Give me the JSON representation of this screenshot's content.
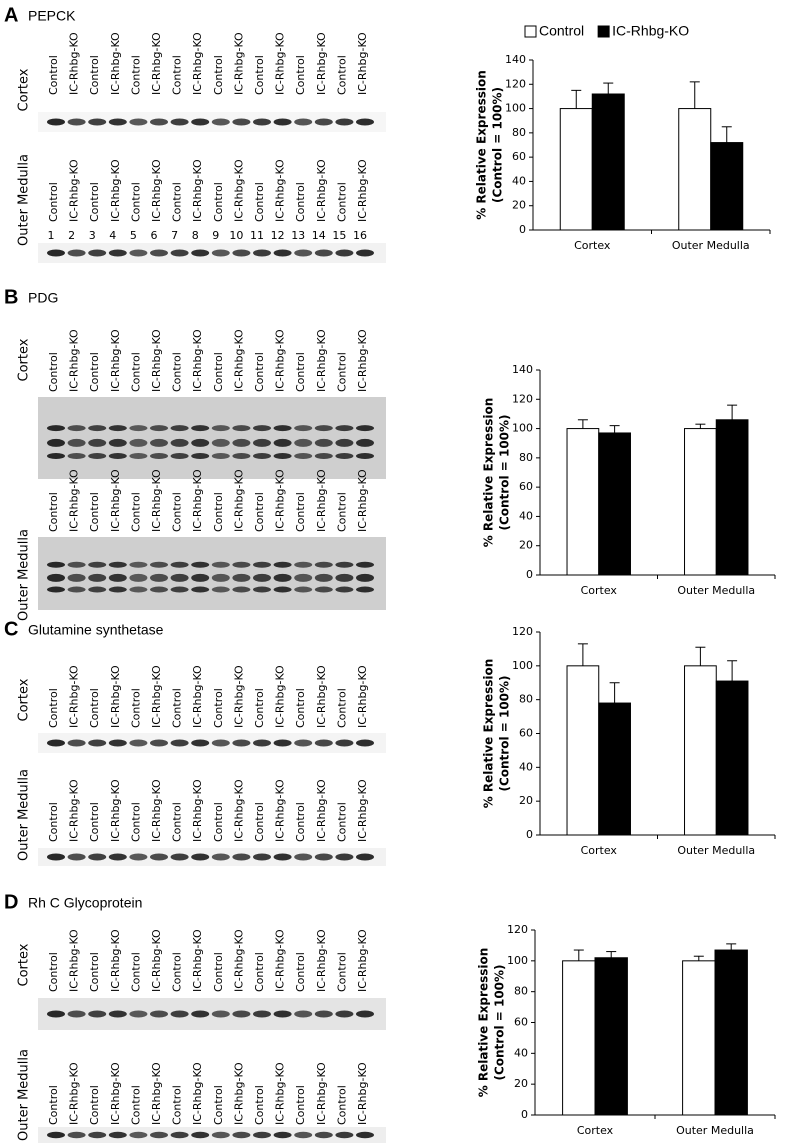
{
  "panels": [
    {
      "letter": "A",
      "title": "PEPCK",
      "blots": [
        {
          "label": "Cortex",
          "lanes": [
            "Control",
            "IC-Rhbg-KO",
            "Control",
            "IC-Rhbg-KO",
            "Control",
            "IC-Rhbg-KO",
            "Control",
            "IC-Rhbg-KO",
            "Control",
            "IC-Rhbg-KO",
            "Control",
            "IC-Rhbg-KO",
            "Control",
            "IC-Rhbg-KO",
            "Control",
            "IC-Rhbg-KO"
          ]
        },
        {
          "label": "Outer Medulla",
          "lanes": [
            "Control",
            "IC-Rhbg-KO",
            "Control",
            "IC-Rhbg-KO",
            "Control",
            "IC-Rhbg-KO",
            "Control",
            "IC-Rhbg-KO",
            "Control",
            "IC-Rhbg-KO",
            "Control",
            "IC-Rhbg-KO",
            "Control",
            "IC-Rhbg-KO",
            "Control",
            "IC-Rhbg-KO"
          ],
          "lane_numbers": [
            1,
            2,
            3,
            4,
            5,
            6,
            7,
            8,
            9,
            10,
            11,
            12,
            13,
            14,
            15,
            16
          ]
        }
      ]
    },
    {
      "letter": "B",
      "title": "PDG",
      "blots": [
        {
          "label": "Cortex",
          "lanes": [
            "Control",
            "IC-Rhbg-KO",
            "Control",
            "IC-Rhbg-KO",
            "Control",
            "IC-Rhbg-KO",
            "Control",
            "IC-Rhbg-KO",
            "Control",
            "IC-Rhbg-KO",
            "Control",
            "IC-Rhbg-KO",
            "Control",
            "IC-Rhbg-KO",
            "Control",
            "IC-Rhbg-KO"
          ]
        },
        {
          "label": "Outer Medulla",
          "lanes": [
            "Control",
            "IC-Rhbg-KO",
            "Control",
            "IC-Rhbg-KO",
            "Control",
            "IC-Rhbg-KO",
            "Control",
            "IC-Rhbg-KO",
            "Control",
            "IC-Rhbg-KO",
            "Control",
            "IC-Rhbg-KO",
            "Control",
            "IC-Rhbg-KO",
            "Control",
            "IC-Rhbg-KO"
          ]
        }
      ]
    },
    {
      "letter": "C",
      "title": "Glutamine synthetase",
      "blots": [
        {
          "label": "Cortex",
          "lanes": [
            "Control",
            "IC-Rhbg-KO",
            "Control",
            "IC-Rhbg-KO",
            "Control",
            "IC-Rhbg-KO",
            "Control",
            "IC-Rhbg-KO",
            "Control",
            "IC-Rhbg-KO",
            "Control",
            "IC-Rhbg-KO",
            "Control",
            "IC-Rhbg-KO",
            "Control",
            "IC-Rhbg-KO"
          ]
        },
        {
          "label": "Outer Medulla",
          "lanes": [
            "Control",
            "IC-Rhbg-KO",
            "Control",
            "IC-Rhbg-KO",
            "Control",
            "IC-Rhbg-KO",
            "Control",
            "IC-Rhbg-KO",
            "Control",
            "IC-Rhbg-KO",
            "Control",
            "IC-Rhbg-KO",
            "Control",
            "IC-Rhbg-KO",
            "Control",
            "IC-Rhbg-KO"
          ]
        }
      ]
    },
    {
      "letter": "D",
      "title": "Rh C Glycoprotein",
      "blots": [
        {
          "label": "Cortex",
          "lanes": [
            "Control",
            "IC-Rhbg-KO",
            "Control",
            "IC-Rhbg-KO",
            "Control",
            "IC-Rhbg-KO",
            "Control",
            "IC-Rhbg-KO",
            "Control",
            "IC-Rhbg-KO",
            "Control",
            "IC-Rhbg-KO",
            "Control",
            "IC-Rhbg-KO",
            "Control",
            "IC-Rhbg-KO"
          ]
        },
        {
          "label": "Outer Medulla",
          "lanes": [
            "Control",
            "IC-Rhbg-KO",
            "Control",
            "IC-Rhbg-KO",
            "Control",
            "IC-Rhbg-KO",
            "Control",
            "IC-Rhbg-KO",
            "Control",
            "IC-Rhbg-KO",
            "Control",
            "IC-Rhbg-KO",
            "Control",
            "IC-Rhbg-KO",
            "Control",
            "IC-Rhbg-KO"
          ]
        }
      ]
    }
  ],
  "chart_data": [
    {
      "type": "bar",
      "y_label": [
        "% Relative Expression",
        "(Control = 100%)"
      ],
      "categories": [
        "Cortex",
        "Outer Medulla"
      ],
      "legend": true,
      "legend_position": "top",
      "series": [
        {
          "name": "Control",
          "color": "#ffffff",
          "values": [
            100,
            100
          ],
          "errors": [
            15,
            22
          ]
        },
        {
          "name": "IC-Rhbg-KO",
          "color": "#000000",
          "values": [
            112,
            72
          ],
          "errors": [
            9,
            13
          ]
        }
      ],
      "ylim": [
        0,
        140
      ],
      "yticks": [
        0,
        20,
        40,
        60,
        80,
        100,
        120,
        140
      ]
    },
    {
      "type": "bar",
      "y_label": [
        "% Relative Expression",
        "(Control = 100%)"
      ],
      "categories": [
        "Cortex",
        "Outer Medulla"
      ],
      "legend": false,
      "series": [
        {
          "color": "#ffffff",
          "values": [
            100,
            100
          ],
          "errors": [
            6,
            3
          ]
        },
        {
          "color": "#000000",
          "values": [
            97,
            106
          ],
          "errors": [
            5,
            10
          ]
        }
      ],
      "ylim": [
        0,
        140
      ],
      "yticks": [
        0,
        20,
        40,
        60,
        80,
        100,
        120,
        140
      ]
    },
    {
      "type": "bar",
      "y_label": [
        "% Relative Expression",
        "(Control = 100%)"
      ],
      "categories": [
        "Cortex",
        "Outer Medulla"
      ],
      "legend": false,
      "series": [
        {
          "color": "#ffffff",
          "values": [
            100,
            100
          ],
          "errors": [
            13,
            11
          ]
        },
        {
          "color": "#000000",
          "values": [
            78,
            91
          ],
          "errors": [
            12,
            12
          ]
        }
      ],
      "ylim": [
        0,
        120
      ],
      "yticks": [
        0,
        20,
        40,
        60,
        80,
        100,
        120
      ]
    },
    {
      "type": "bar",
      "y_label": [
        "% Relative Expression",
        "(Control = 100%)"
      ],
      "categories": [
        "Cortex",
        "Outer Medulla"
      ],
      "legend": false,
      "series": [
        {
          "color": "#ffffff",
          "values": [
            100,
            100
          ],
          "errors": [
            7,
            3
          ]
        },
        {
          "color": "#000000",
          "values": [
            102,
            107
          ],
          "errors": [
            4,
            4
          ]
        }
      ],
      "ylim": [
        0,
        120
      ],
      "yticks": [
        0,
        20,
        40,
        60,
        80,
        100,
        120
      ]
    }
  ]
}
